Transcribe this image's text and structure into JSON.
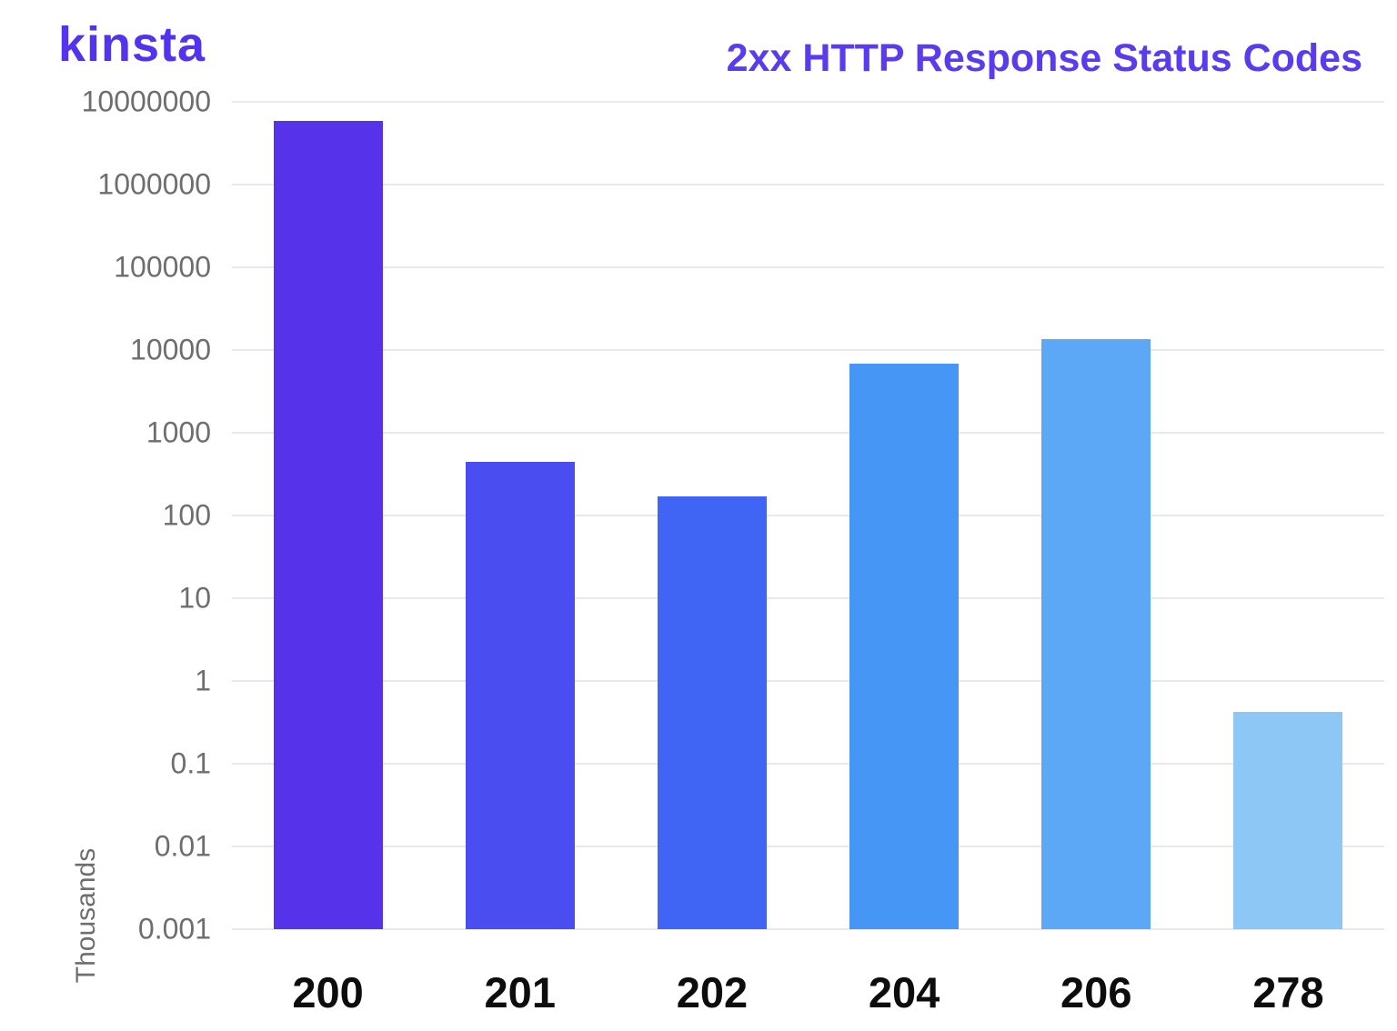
{
  "brand": {
    "logo_text": "kinsta",
    "color": "#5333ED"
  },
  "header": {
    "title": "2xx HTTP Response Status Codes",
    "title_color": "#5B3BEE"
  },
  "chart_data": {
    "type": "bar",
    "title": "2xx HTTP Response Status Codes",
    "categories": [
      "200",
      "201",
      "202",
      "204",
      "206",
      "278"
    ],
    "values": [
      5900000,
      450,
      170,
      6800,
      13500,
      0.42
    ],
    "ylabel": "Thousands",
    "yscale": "log",
    "ylim": [
      0.001,
      10000000
    ],
    "yticks": [
      10000000,
      1000000,
      100000,
      10000,
      1000,
      100,
      10,
      1,
      0.1,
      0.01,
      0.001
    ],
    "ytick_labels": [
      "10000000",
      "1000000",
      "100000",
      "10000",
      "1000",
      "100",
      "10",
      "1",
      "0.1",
      "0.01",
      "0.001"
    ],
    "bar_colors": [
      "#5633EB",
      "#4A4DF0",
      "#4064F4",
      "#4696F5",
      "#5DA7F7",
      "#8DC7F5"
    ],
    "grid": true,
    "gridline_color": "#E9E9E9",
    "background": "#FFFFFF",
    "tick_label_color": "#6E6E6E",
    "x_label_color": "#0D0D0D",
    "legend": "none"
  }
}
